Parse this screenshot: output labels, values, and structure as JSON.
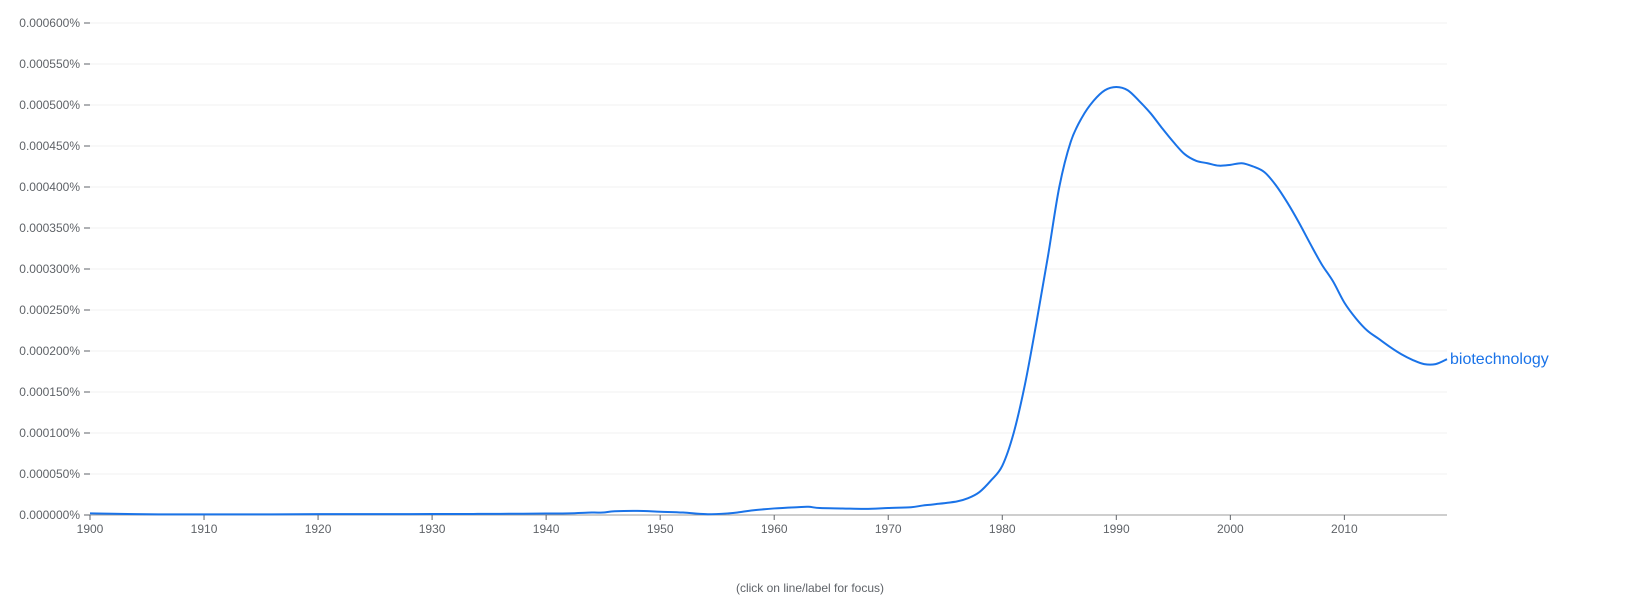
{
  "footnote": "(click on line/label for focus)",
  "chart_data": {
    "type": "line",
    "title": "",
    "xlabel": "",
    "ylabel": "",
    "xlim": [
      1900,
      2019
    ],
    "ylim": [
      0,
      0.0006
    ],
    "x_ticks": [
      1900,
      1910,
      1920,
      1930,
      1940,
      1950,
      1960,
      1970,
      1980,
      1990,
      2000,
      2010
    ],
    "y_ticks": [
      0,
      5e-05,
      0.0001,
      0.00015,
      0.0002,
      0.00025,
      0.0003,
      0.00035,
      0.0004,
      0.00045,
      0.0005,
      0.00055,
      0.0006
    ],
    "y_tick_labels": [
      "0.000000%",
      "0.000050%",
      "0.000100%",
      "0.000150%",
      "0.000200%",
      "0.000250%",
      "0.000300%",
      "0.000350%",
      "0.000400%",
      "0.000450%",
      "0.000500%",
      "0.000550%",
      "0.000600%"
    ],
    "grid": true,
    "legend": "end-of-line label",
    "series": [
      {
        "name": "biotechnology",
        "color": "#1a73e8",
        "x": [
          1900,
          1902,
          1904,
          1906,
          1908,
          1910,
          1912,
          1914,
          1916,
          1918,
          1920,
          1922,
          1924,
          1926,
          1928,
          1930,
          1932,
          1934,
          1936,
          1938,
          1940,
          1942,
          1944,
          1945,
          1946,
          1948,
          1950,
          1952,
          1954,
          1956,
          1957,
          1958,
          1960,
          1962,
          1963,
          1964,
          1966,
          1968,
          1970,
          1972,
          1973,
          1974,
          1976,
          1977,
          1978,
          1979,
          1980,
          1981,
          1982,
          1983,
          1984,
          1985,
          1986,
          1987,
          1988,
          1989,
          1990,
          1991,
          1992,
          1993,
          1994,
          1995,
          1996,
          1997,
          1998,
          1999,
          2000,
          2001,
          2002,
          2003,
          2004,
          2005,
          2006,
          2007,
          2008,
          2009,
          2010,
          2011,
          2012,
          2013,
          2014,
          2015,
          2016,
          2017,
          2018,
          2019
        ],
        "values": [
          2e-06,
          1.5e-06,
          1e-06,
          8e-07,
          7e-07,
          7e-07,
          7e-07,
          7e-07,
          8e-07,
          9e-07,
          1e-06,
          1e-06,
          1e-06,
          1.1e-06,
          1.1e-06,
          1.2e-06,
          1.2e-06,
          1.3e-06,
          1.4e-06,
          1.6e-06,
          1.8e-06,
          2e-06,
          3e-06,
          3e-06,
          4.5e-06,
          5e-06,
          4e-06,
          3e-06,
          1e-06,
          2e-06,
          3.5e-06,
          5.5e-06,
          8e-06,
          9.5e-06,
          1e-05,
          8.5e-06,
          8e-06,
          7.5e-06,
          8.5e-06,
          9.5e-06,
          1.15e-05,
          1.3e-05,
          1.65e-05,
          2.05e-05,
          2.8e-05,
          4.2e-05,
          6e-05,
          0.0001,
          0.00016,
          0.000235,
          0.000315,
          0.0004,
          0.000455,
          0.000485,
          0.000505,
          0.000518,
          0.000522,
          0.000518,
          0.000505,
          0.00049,
          0.000472,
          0.000455,
          0.00044,
          0.000432,
          0.000429,
          0.000426,
          0.000427,
          0.000429,
          0.000425,
          0.000418,
          0.000402,
          0.000381,
          0.000357,
          0.000331,
          0.000306,
          0.000285,
          0.000259,
          0.00024,
          0.000225,
          0.000215,
          0.000205,
          0.000196,
          0.000189,
          0.000184,
          0.000184,
          0.00019
        ]
      }
    ]
  }
}
